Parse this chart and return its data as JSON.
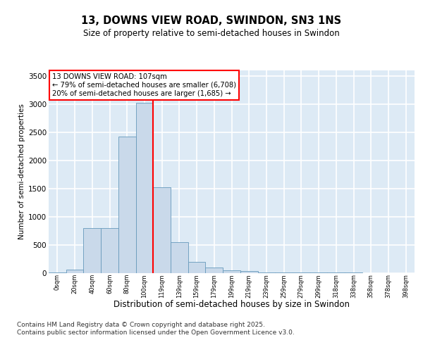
{
  "title_line1": "13, DOWNS VIEW ROAD, SWINDON, SN3 1NS",
  "title_line2": "Size of property relative to semi-detached houses in Swindon",
  "xlabel": "Distribution of semi-detached houses by size in Swindon",
  "ylabel": "Number of semi-detached properties",
  "bar_labels": [
    "0sqm",
    "20sqm",
    "40sqm",
    "60sqm",
    "80sqm",
    "100sqm",
    "119sqm",
    "139sqm",
    "159sqm",
    "179sqm",
    "199sqm",
    "219sqm",
    "239sqm",
    "259sqm",
    "279sqm",
    "299sqm",
    "318sqm",
    "338sqm",
    "358sqm",
    "378sqm",
    "398sqm"
  ],
  "bar_values": [
    5,
    60,
    800,
    800,
    2420,
    3020,
    1520,
    550,
    200,
    90,
    50,
    30,
    5,
    5,
    2,
    2,
    3,
    1,
    0,
    0,
    0
  ],
  "bar_color": "#c9d9ea",
  "bar_edge_color": "#6699bb",
  "vline_color": "red",
  "ylim": [
    0,
    3600
  ],
  "yticks": [
    0,
    500,
    1000,
    1500,
    2000,
    2500,
    3000,
    3500
  ],
  "annotation_text": "13 DOWNS VIEW ROAD: 107sqm\n← 79% of semi-detached houses are smaller (6,708)\n20% of semi-detached houses are larger (1,685) →",
  "footer_text": "Contains HM Land Registry data © Crown copyright and database right 2025.\nContains public sector information licensed under the Open Government Licence v3.0.",
  "background_color": "#ddeaf5",
  "grid_color": "white"
}
